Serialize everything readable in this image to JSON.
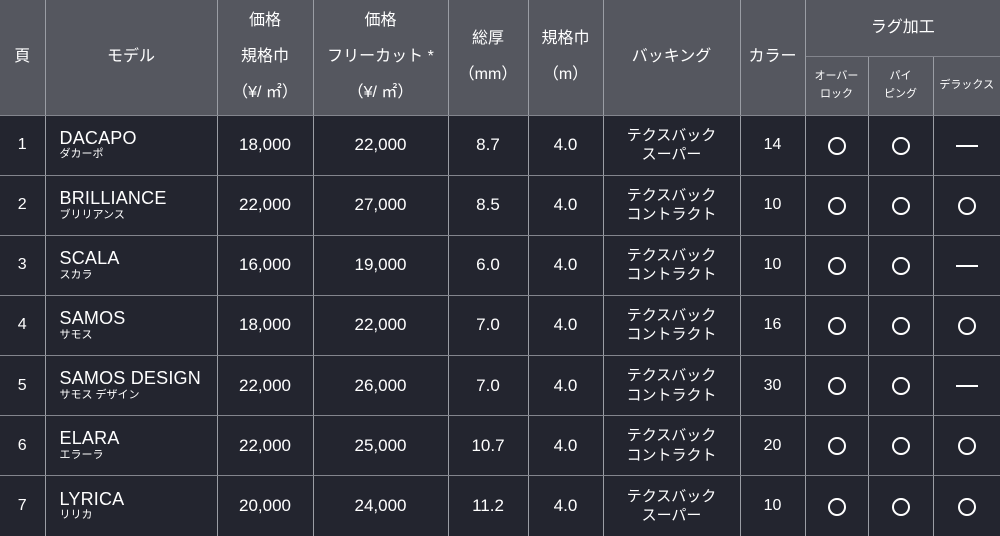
{
  "colors": {
    "header-bg": "#55575f",
    "row-bg": "#23252f",
    "v-border": "#9a9da4",
    "h-border": "#83858d",
    "text": "#ffffff",
    "mark": "#ffffff"
  },
  "table": {
    "headers": {
      "page": "頁",
      "model": "モデル",
      "price_standard": "価格\n規格巾\n（¥/ ㎡）",
      "price_freecut": "価格\nフリーカット *\n（¥/ ㎡）",
      "thickness": "総厚\n（mm）",
      "width": "規格巾\n（m）",
      "backing": "バッキング",
      "color": "カラー",
      "rug_group": "ラグ加工",
      "overlock": "オーバー\nロック",
      "piping": "パイ\nピング",
      "deluxe": "デラックス"
    },
    "marks": {
      "available": "○",
      "unavailable": "—"
    },
    "rows": [
      {
        "page": "1",
        "model_en": "DACAPO",
        "model_ja": "ダカーポ",
        "price_standard": "18,000",
        "price_freecut": "22,000",
        "thickness": "8.7",
        "width": "4.0",
        "backing": "テクスバック\nスーパー",
        "color": "14",
        "overlock": "○",
        "piping": "○",
        "deluxe": "—"
      },
      {
        "page": "2",
        "model_en": "BRILLIANCE",
        "model_ja": "ブリリアンス",
        "price_standard": "22,000",
        "price_freecut": "27,000",
        "thickness": "8.5",
        "width": "4.0",
        "backing": "テクスバック\nコントラクト",
        "color": "10",
        "overlock": "○",
        "piping": "○",
        "deluxe": "○"
      },
      {
        "page": "3",
        "model_en": "SCALA",
        "model_ja": "スカラ",
        "price_standard": "16,000",
        "price_freecut": "19,000",
        "thickness": "6.0",
        "width": "4.0",
        "backing": "テクスバック\nコントラクト",
        "color": "10",
        "overlock": "○",
        "piping": "○",
        "deluxe": "—"
      },
      {
        "page": "4",
        "model_en": "SAMOS",
        "model_ja": "サモス",
        "price_standard": "18,000",
        "price_freecut": "22,000",
        "thickness": "7.0",
        "width": "4.0",
        "backing": "テクスバック\nコントラクト",
        "color": "16",
        "overlock": "○",
        "piping": "○",
        "deluxe": "○"
      },
      {
        "page": "5",
        "model_en": "SAMOS DESIGN",
        "model_ja": "サモス デザイン",
        "price_standard": "22,000",
        "price_freecut": "26,000",
        "thickness": "7.0",
        "width": "4.0",
        "backing": "テクスバック\nコントラクト",
        "color": "30",
        "overlock": "○",
        "piping": "○",
        "deluxe": "—"
      },
      {
        "page": "6",
        "model_en": "ELARA",
        "model_ja": "エラーラ",
        "price_standard": "22,000",
        "price_freecut": "25,000",
        "thickness": "10.7",
        "width": "4.0",
        "backing": "テクスバック\nコントラクト",
        "color": "20",
        "overlock": "○",
        "piping": "○",
        "deluxe": "○"
      },
      {
        "page": "7",
        "model_en": "LYRICA",
        "model_ja": "リリカ",
        "price_standard": "20,000",
        "price_freecut": "24,000",
        "thickness": "11.2",
        "width": "4.0",
        "backing": "テクスバック\nスーパー",
        "color": "10",
        "overlock": "○",
        "piping": "○",
        "deluxe": "○"
      }
    ]
  }
}
